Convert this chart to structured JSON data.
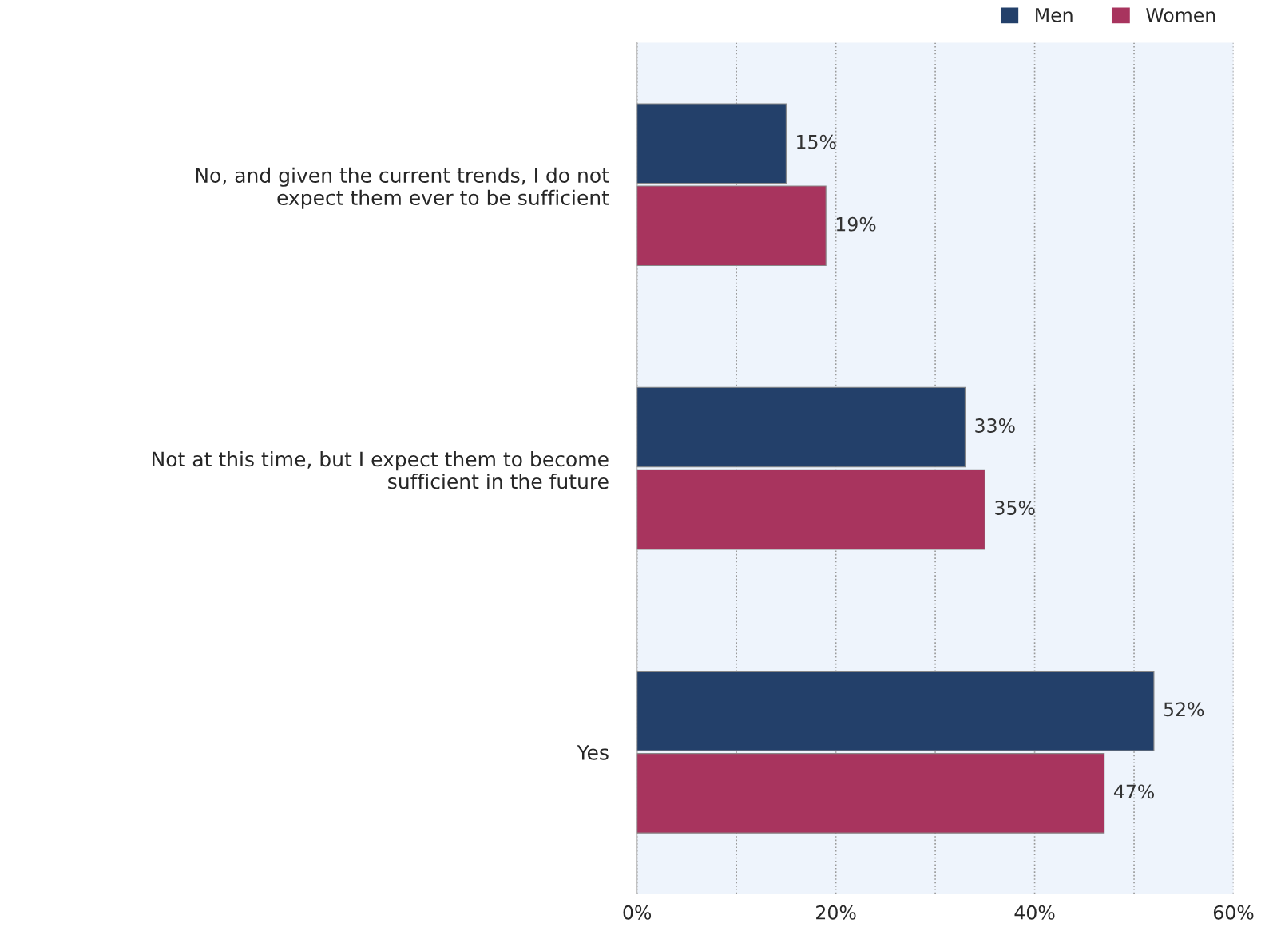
{
  "chart_data": {
    "type": "bar",
    "orientation": "horizontal",
    "categories": [
      "No, and given the current trends, I do not\nexpect them ever to be sufficient",
      "Not at this time, but I expect them to become\nsufficient in the future",
      "Yes"
    ],
    "series": [
      {
        "name": "Men",
        "color": "#23406a",
        "values": [
          15,
          33,
          52
        ]
      },
      {
        "name": "Women",
        "color": "#a8345e",
        "values": [
          19,
          35,
          47
        ]
      }
    ],
    "xlim": [
      0,
      60
    ],
    "xticks": [
      {
        "value": 0,
        "label": "0%"
      },
      {
        "value": 10,
        "label": null
      },
      {
        "value": 20,
        "label": "20%"
      },
      {
        "value": 30,
        "label": null
      },
      {
        "value": 40,
        "label": "40%"
      },
      {
        "value": 50,
        "label": null
      },
      {
        "value": 60,
        "label": "60%"
      }
    ],
    "value_labels": [
      [
        "15%",
        "33%",
        "52%"
      ],
      [
        "19%",
        "35%",
        "47%"
      ]
    ],
    "grid": "x",
    "legend": "top right"
  }
}
